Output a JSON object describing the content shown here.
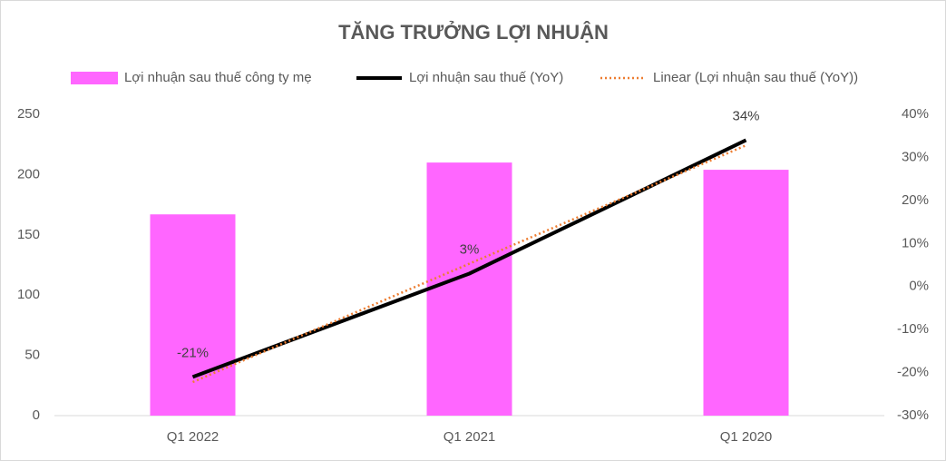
{
  "chart_data": {
    "type": "bar",
    "title": "TĂNG TRƯỞNG LỢI NHUẬN",
    "categories": [
      "Q1 2022",
      "Q1 2021",
      "Q1 2020"
    ],
    "series": [
      {
        "name": "Lợi nhuận sau thuế công ty mẹ",
        "type": "bar",
        "color": "#ff66ff",
        "values": [
          167,
          210,
          204
        ]
      },
      {
        "name": "Lợi nhuận sau thuế (YoY)",
        "type": "line",
        "axis": "y2",
        "color": "#000000",
        "values": [
          -21,
          3,
          34
        ],
        "value_labels": [
          "-21%",
          "3%",
          "34%"
        ]
      },
      {
        "name": "Linear (Lợi nhuận sau thuế (YoY))",
        "type": "trendline",
        "axis": "y2",
        "color": "#ed7d31",
        "values": [
          -22.2,
          5.3,
          32.8
        ]
      }
    ],
    "ylim": [
      0,
      250
    ],
    "yticks": [
      0,
      50,
      100,
      150,
      200,
      250
    ],
    "y2lim": [
      -30,
      40
    ],
    "y2ticks": [
      {
        "value": -30,
        "label": "-30%"
      },
      {
        "value": -20,
        "label": "-20%"
      },
      {
        "value": -10,
        "label": "-10%"
      },
      {
        "value": 0,
        "label": "0%"
      },
      {
        "value": 10,
        "label": "10%"
      },
      {
        "value": 20,
        "label": "20%"
      },
      {
        "value": 30,
        "label": "30%"
      },
      {
        "value": 40,
        "label": "40%"
      }
    ],
    "grid": false,
    "legend": "top"
  }
}
